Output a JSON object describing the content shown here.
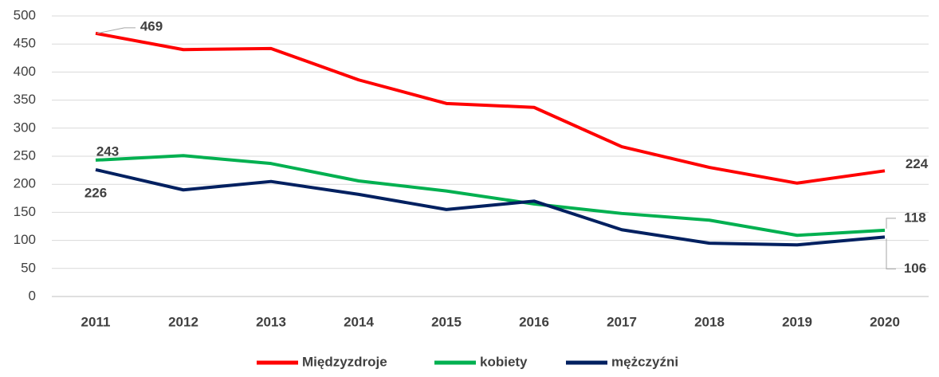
{
  "chart_data": {
    "type": "line",
    "categories": [
      "2011",
      "2012",
      "2013",
      "2014",
      "2015",
      "2016",
      "2017",
      "2018",
      "2019",
      "2020"
    ],
    "series": [
      {
        "name": "Międzyzdroje",
        "color": "#ff0000",
        "values": [
          469,
          440,
          442,
          386,
          344,
          337,
          267,
          230,
          202,
          224
        ]
      },
      {
        "name": "kobiety",
        "color": "#00b050",
        "values": [
          243,
          251,
          237,
          206,
          188,
          165,
          148,
          136,
          109,
          118
        ]
      },
      {
        "name": "mężczyźni",
        "color": "#002060",
        "values": [
          226,
          190,
          205,
          182,
          155,
          170,
          119,
          95,
          92,
          106
        ]
      }
    ],
    "ylim": [
      0,
      500
    ],
    "yticks": [
      0,
      50,
      100,
      150,
      200,
      250,
      300,
      350,
      400,
      450,
      500
    ],
    "grid": true,
    "legend": "bottom"
  }
}
